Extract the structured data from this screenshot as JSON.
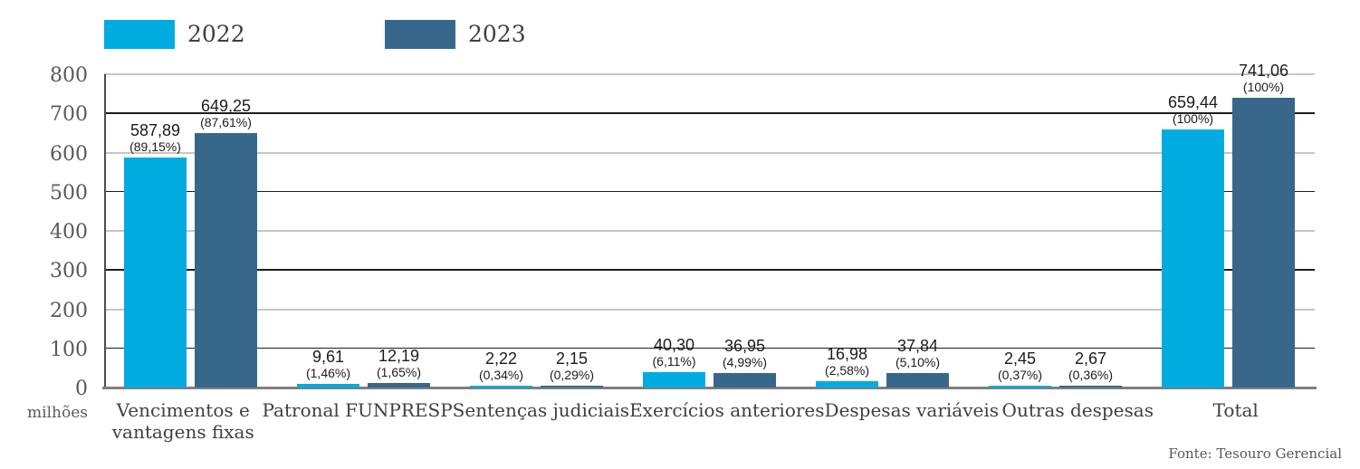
{
  "legend": {
    "items": [
      {
        "label": "2022",
        "color": "#00ACDF"
      },
      {
        "label": "2023",
        "color": "#37688C"
      }
    ]
  },
  "y_axis": {
    "ticks": [
      0,
      100,
      200,
      300,
      400,
      500,
      600,
      700,
      800
    ],
    "max": 800,
    "unit_label": "milhões"
  },
  "footer": {
    "source": "Fonte: Tesouro Gerencial"
  },
  "chart_data": {
    "type": "bar",
    "title": "",
    "xlabel": "",
    "ylabel": "milhões",
    "ylim": [
      0,
      800
    ],
    "grid": "horizontal",
    "legend_position": "top-left",
    "categories": [
      "Vencimentos e vantagens fixas",
      "Patronal FUNPRESP",
      "Sentenças judiciais",
      "Exercícios anteriores",
      "Despesas variáveis",
      "Outras despesas",
      "Total"
    ],
    "series": [
      {
        "name": "2022",
        "color": "#00ACDF",
        "values": [
          587.89,
          9.61,
          2.22,
          40.3,
          16.98,
          2.45,
          659.44
        ],
        "value_labels": [
          "587,89",
          "9,61",
          "2,22",
          "40,30",
          "16,98",
          "2,45",
          "659,44"
        ],
        "pct_labels": [
          "(89,15%)",
          "(1,46%)",
          "(0,34%)",
          "(6,11%)",
          "(2,58%)",
          "(0,37%)",
          "(100%)"
        ]
      },
      {
        "name": "2023",
        "color": "#37688C",
        "values": [
          649.25,
          12.19,
          2.15,
          36.95,
          37.84,
          2.67,
          741.06
        ],
        "value_labels": [
          "649,25",
          "12,19",
          "2,15",
          "36,95",
          "37,84",
          "2,67",
          "741,06"
        ],
        "pct_labels": [
          "(87,61%)",
          "(1,65%)",
          "(0,29%)",
          "(4,99%)",
          "(5,10%)",
          "(0,36%)",
          "(100%)"
        ]
      }
    ]
  }
}
